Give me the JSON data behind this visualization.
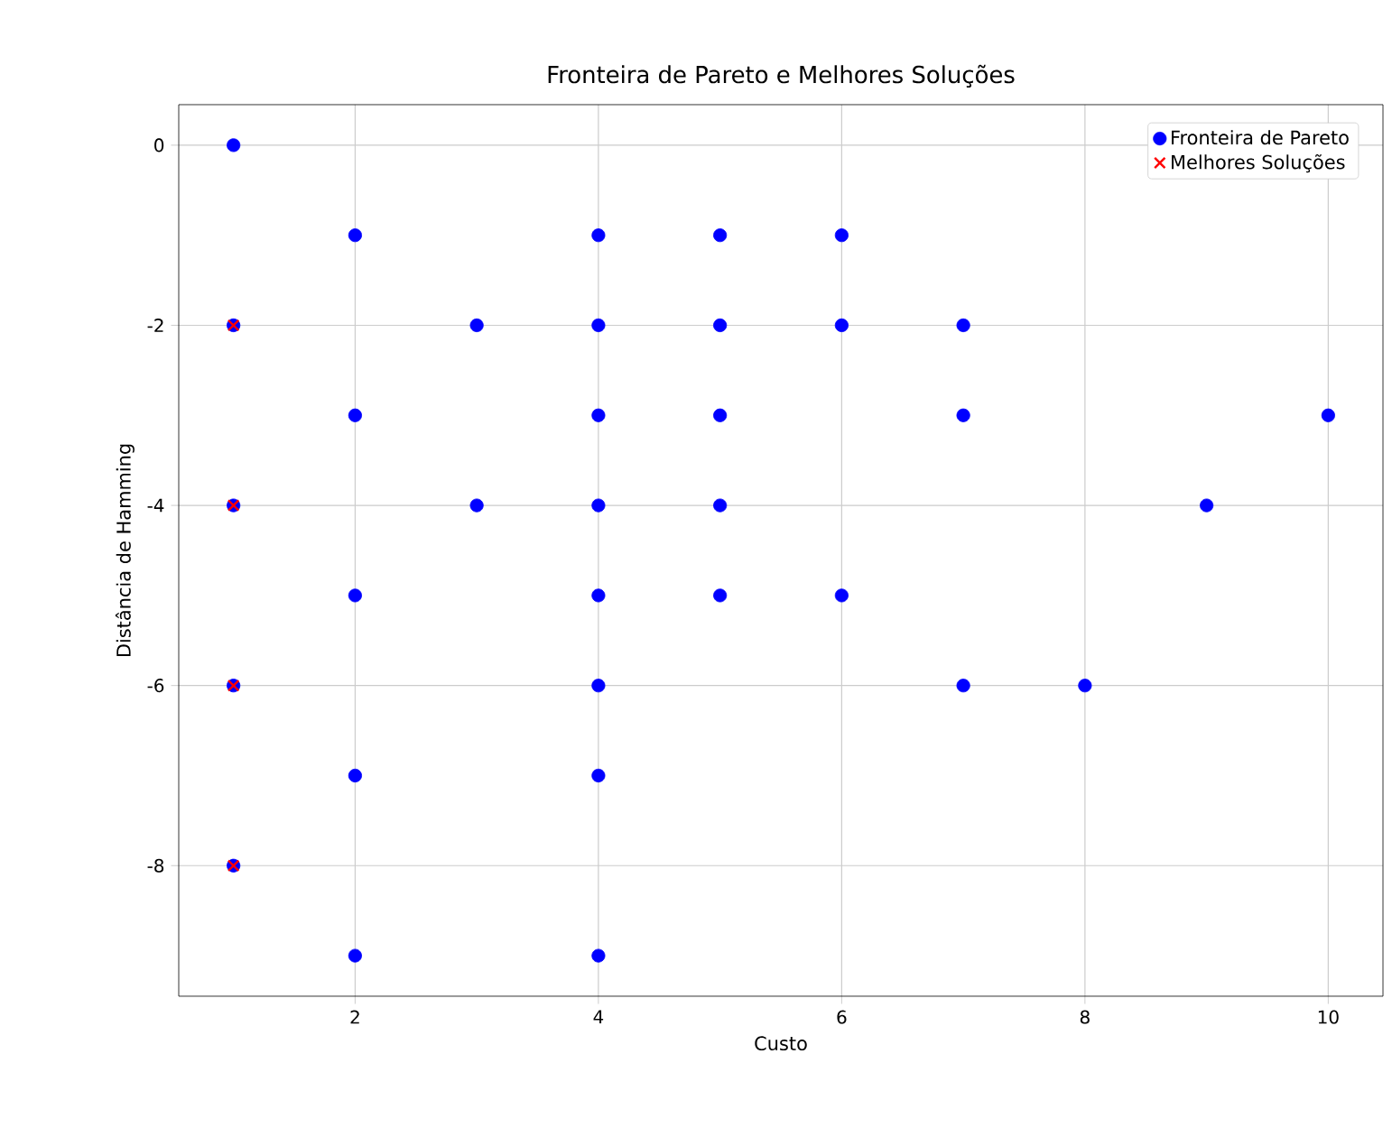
{
  "chart_data": {
    "type": "scatter",
    "title": "Fronteira de Pareto e Melhores Soluções",
    "xlabel": "Custo",
    "ylabel": "Distância de Hamming",
    "xlim": [
      0.55,
      10.45
    ],
    "ylim": [
      -9.45,
      0.45
    ],
    "xticks": [
      2,
      4,
      6,
      8,
      10
    ],
    "yticks": [
      -8,
      -6,
      -4,
      -2,
      0
    ],
    "grid": true,
    "legend": "top right",
    "series": [
      {
        "name": "Fronteira de Pareto",
        "color": "#0000ff",
        "marker": "circle",
        "x": [
          1,
          1,
          1,
          1,
          1,
          2,
          2,
          2,
          2,
          2,
          3,
          3,
          4,
          4,
          4,
          4,
          4,
          4,
          4,
          4,
          5,
          5,
          5,
          5,
          5,
          6,
          6,
          6,
          7,
          7,
          7,
          8,
          9,
          10
        ],
        "values": [
          0,
          -2,
          -4,
          -6,
          -8,
          -1,
          -3,
          -5,
          -7,
          -9,
          -2,
          -4,
          -1,
          -2,
          -3,
          -4,
          -5,
          -6,
          -7,
          -9,
          -1,
          -2,
          -3,
          -4,
          -5,
          -1,
          -2,
          -5,
          -2,
          -3,
          -6,
          -6,
          -4,
          -3
        ]
      },
      {
        "name": "Melhores Soluções",
        "color": "#ff0000",
        "marker": "cross",
        "x": [
          1,
          1,
          1,
          1
        ],
        "values": [
          -2,
          -4,
          -6,
          -8
        ]
      }
    ]
  }
}
